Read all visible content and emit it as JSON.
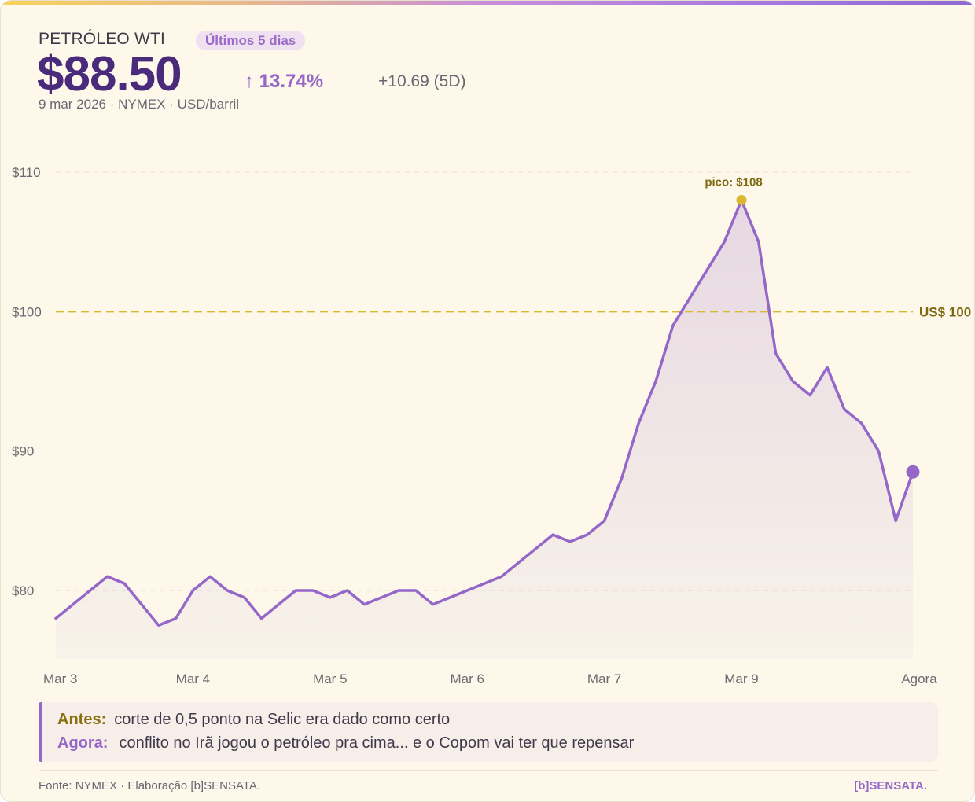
{
  "header": {
    "asset_name": "PETRÓLEO WTI",
    "range_badge": "Últimos 5 dias",
    "price": "$88.50",
    "change_pct": "↑ 13.74%",
    "change_abs": "+10.69 (5D)",
    "meta": "9 mar 2026 · NYMEX · USD/barril"
  },
  "note": {
    "before_label": "Antes:",
    "before_text": "corte de 0,5 ponto na Selic era dado como certo",
    "now_label": "Agora:",
    "now_text": "conflito no Irã jogou o petróleo pra cima... e o Copom vai ter que repensar"
  },
  "footer": {
    "source": "Fonte: NYMEX · Elaboração [b]SENSATA.",
    "brand": "[b]SENSATA."
  },
  "colors": {
    "background": "#fdf8ea",
    "line": "#9467c8",
    "price": "#4a2a7a",
    "reference_line": "#d9b92e",
    "peak_marker": "#d9b92e"
  },
  "chart_data": {
    "type": "line",
    "title": "",
    "xlabel": "",
    "ylabel": "",
    "ylim": [
      75,
      112
    ],
    "yticks": [
      80,
      90,
      100,
      110
    ],
    "ytick_labels": [
      "$80",
      "$90",
      "$100",
      "$110"
    ],
    "xticks": [
      {
        "index": 0,
        "label": "Mar 3"
      },
      {
        "index": 8,
        "label": "Mar 4"
      },
      {
        "index": 16,
        "label": "Mar 5"
      },
      {
        "index": 24,
        "label": "Mar 6"
      },
      {
        "index": 32,
        "label": "Mar 7"
      },
      {
        "index": 40,
        "label": "Mar 9"
      },
      {
        "index": 50,
        "label": "Agora"
      }
    ],
    "series": [
      {
        "values": [
          78,
          79,
          80,
          81,
          80.5,
          79,
          77.5,
          78,
          80,
          81,
          80,
          79.5,
          78,
          79,
          80,
          80,
          79.5,
          80,
          79,
          79.5,
          80,
          80,
          79,
          79.5,
          80,
          80.5,
          81,
          82,
          83,
          84,
          83.5,
          84,
          85,
          88,
          92,
          95,
          99,
          101,
          103,
          105,
          108,
          105,
          97,
          95,
          94,
          96,
          93,
          92,
          90,
          85,
          88.5
        ]
      }
    ],
    "reference_line": {
      "value": 100,
      "label": "US$ 100"
    },
    "peak": {
      "index": 40,
      "value": 108,
      "label": "pico: $108"
    },
    "last_point": {
      "index": 50,
      "value": 88.5
    },
    "grid": true,
    "area_fill": true
  }
}
